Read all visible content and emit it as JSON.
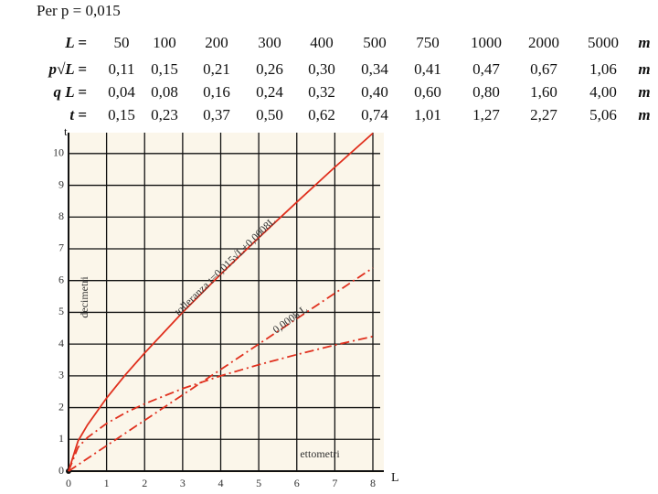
{
  "header": {
    "title": "Per p = 0,015"
  },
  "table": {
    "rows": [
      [
        "L =",
        "50",
        "100",
        "200",
        "300",
        "400",
        "500",
        "750",
        "1000",
        "2000",
        "5000",
        "m"
      ],
      [
        "p√L =",
        "0,11",
        "0,15",
        "0,21",
        "0,26",
        "0,30",
        "0,34",
        "0,41",
        "0,47",
        "0,67",
        "1,06",
        "m"
      ],
      [
        "q L =",
        "0,04",
        "0,08",
        "0,16",
        "0,24",
        "0,32",
        "0,40",
        "0,60",
        "0,80",
        "1,60",
        "4,00",
        "m"
      ],
      [
        "t =",
        "0,15",
        "0,23",
        "0,37",
        "0,50",
        "0,62",
        "0,74",
        "1,01",
        "1,27",
        "2,27",
        "5,06",
        "m"
      ]
    ]
  },
  "chart_data": {
    "type": "line",
    "x_label": "L",
    "y_label": "t",
    "x_unit_label": "ettometri",
    "y_unit_label": "decimetri",
    "x": [
      0,
      0.25,
      0.5,
      1,
      1.5,
      2,
      3,
      4,
      5,
      6,
      7,
      8
    ],
    "series": [
      {
        "name": "tolleranza t=0,015√L+0,0008L",
        "color": "#e0301e",
        "style": "solid",
        "values": [
          0,
          0.95,
          1.46,
          2.3,
          3.04,
          3.72,
          5.0,
          6.2,
          7.35,
          8.47,
          9.57,
          10.64
        ]
      },
      {
        "name": "0,0008 L",
        "color": "#e0301e",
        "style": "dashdot",
        "values": [
          0,
          0.2,
          0.4,
          0.8,
          1.2,
          1.6,
          2.4,
          3.2,
          4.0,
          4.8,
          5.6,
          6.4
        ]
      },
      {
        "color": "#e0301e",
        "style": "dashdot",
        "values": [
          0,
          0.75,
          1.06,
          1.5,
          1.84,
          2.12,
          2.6,
          3.0,
          3.35,
          3.67,
          3.97,
          4.24
        ]
      }
    ],
    "xlim": [
      0,
      8
    ],
    "ylim": [
      0,
      10.6
    ],
    "xticks": [
      0,
      1,
      2,
      3,
      4,
      5,
      6,
      7,
      8
    ],
    "yticks": [
      0,
      1,
      2,
      3,
      4,
      5,
      6,
      7,
      8,
      9,
      10
    ],
    "grid": true
  }
}
